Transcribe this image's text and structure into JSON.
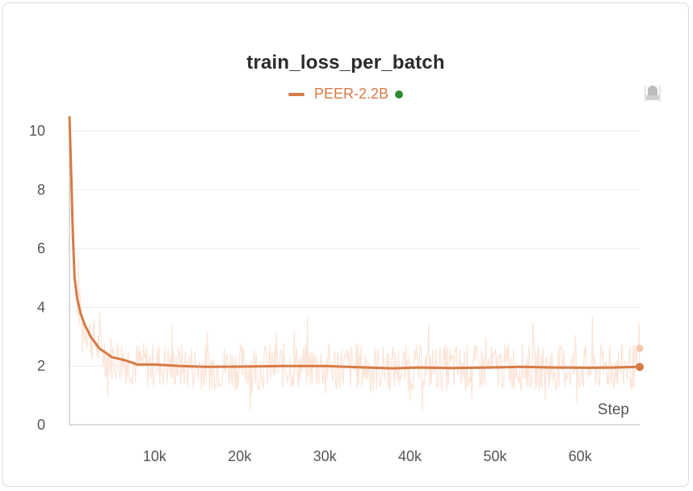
{
  "colors": {
    "series": "#d77a45",
    "series_light": "#fbe4d7",
    "status_dot": "#2e8b2e",
    "grid": "#ececec",
    "axis": "#cfcfcf"
  },
  "icons": {
    "corner": "pin-icon"
  },
  "chart_data": {
    "type": "line",
    "title": "train_loss_per_batch",
    "xlabel": "Step",
    "ylabel": "",
    "xlim": [
      0,
      67000
    ],
    "ylim": [
      0,
      10.5
    ],
    "xticks": [
      10000,
      20000,
      30000,
      40000,
      50000,
      60000
    ],
    "xtick_labels": [
      "10k",
      "20k",
      "30k",
      "40k",
      "50k",
      "60k"
    ],
    "yticks": [
      0,
      2,
      4,
      6,
      8,
      10
    ],
    "ytick_labels": [
      "0",
      "2",
      "4",
      "6",
      "8",
      "10"
    ],
    "grid": true,
    "legend_position": "top-center",
    "series": [
      {
        "name": "PEER-2.2B",
        "smoothed": [
          [
            0,
            10.5
          ],
          [
            200,
            8.6
          ],
          [
            400,
            6.5
          ],
          [
            600,
            5.0
          ],
          [
            900,
            4.3
          ],
          [
            1300,
            3.8
          ],
          [
            1800,
            3.4
          ],
          [
            2500,
            3.0
          ],
          [
            3500,
            2.6
          ],
          [
            5000,
            2.3
          ],
          [
            6500,
            2.2
          ],
          [
            8000,
            2.05
          ],
          [
            10000,
            2.05
          ],
          [
            13000,
            2.0
          ],
          [
            16000,
            1.97
          ],
          [
            20000,
            1.98
          ],
          [
            25000,
            2.0
          ],
          [
            30000,
            2.0
          ],
          [
            35000,
            1.95
          ],
          [
            38000,
            1.92
          ],
          [
            41000,
            1.95
          ],
          [
            45000,
            1.93
          ],
          [
            49000,
            1.95
          ],
          [
            53000,
            1.97
          ],
          [
            57000,
            1.95
          ],
          [
            61000,
            1.94
          ],
          [
            64000,
            1.95
          ],
          [
            67000,
            1.97
          ]
        ],
        "raw_range": [
          0.5,
          4.5
        ],
        "last_raw": 2.6,
        "last_smoothed": 1.97
      }
    ]
  }
}
